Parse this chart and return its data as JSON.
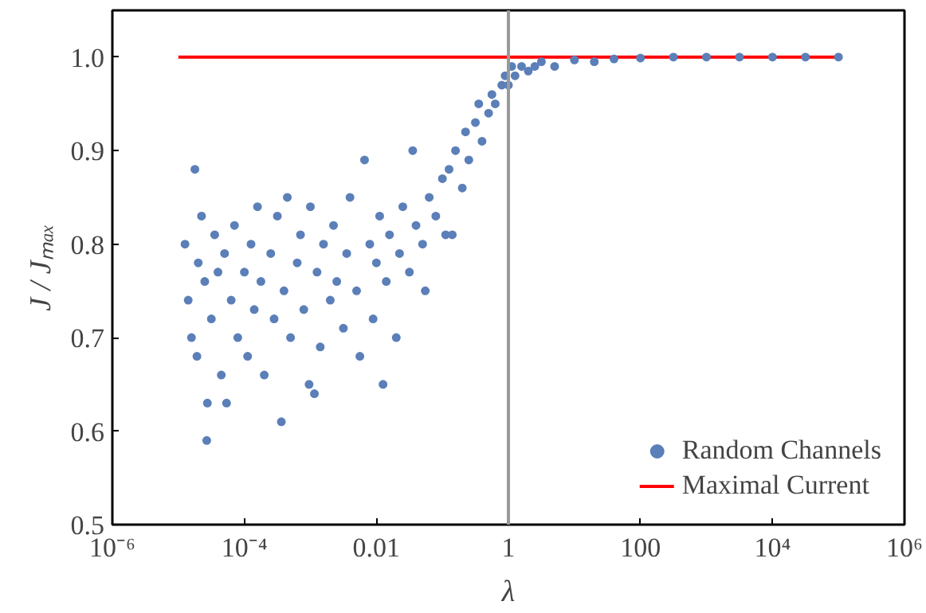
{
  "chart_data": {
    "type": "scatter",
    "xlabel": "λ",
    "ylabel": "J / Jₘₐₓ",
    "log": "x",
    "grid": false,
    "legend": "bottom right",
    "xlim": [
      1e-06,
      1000000
    ],
    "xticks": [
      {
        "value": 1e-06,
        "label": "10⁻⁶"
      },
      {
        "value": 0.0001,
        "label": "10⁻⁴"
      },
      0.01,
      1,
      100,
      {
        "value": 10000,
        "label": "10⁴"
      },
      {
        "value": 1000000,
        "label": "10⁶"
      }
    ],
    "ylim": [
      0.5,
      1.05
    ],
    "yticks": [
      0.5,
      0.6,
      0.7,
      0.8,
      0.9,
      {
        "value": 1.0,
        "label": "1.0"
      }
    ],
    "ref_lines": [
      {
        "axis": "x",
        "value": 1,
        "label": null,
        "color": "#999999",
        "line_style": "solid"
      }
    ],
    "series": [
      {
        "name": "Random Channels",
        "marker": "circle",
        "color": "#5b7fb8",
        "x": [
          1.26e-05,
          1.41e-05,
          1.58e-05,
          1.78e-05,
          2e-05,
          1.91e-05,
          2.24e-05,
          2.51e-05,
          2.69e-05,
          2.75e-05,
          3.16e-05,
          3.55e-05,
          3.98e-05,
          4.47e-05,
          5.01e-05,
          5.37e-05,
          6.31e-05,
          7.08e-05,
          7.94e-05,
          0.0001,
          0.000112,
          0.000126,
          0.000141,
          0.000158,
          0.000178,
          0.0002,
          0.000251,
          0.000282,
          0.000316,
          0.000363,
          0.000398,
          0.000447,
          0.000501,
          0.000631,
          0.000708,
          0.000794,
          0.000955,
          0.001,
          0.00115,
          0.00126,
          0.00141,
          0.00158,
          0.002,
          0.00224,
          0.00251,
          0.00316,
          0.00355,
          0.00398,
          0.00501,
          0.00562,
          0.00661,
          0.00794,
          0.00891,
          0.01,
          0.0112,
          0.0126,
          0.0141,
          0.0158,
          0.02,
          0.0224,
          0.0251,
          0.0316,
          0.0355,
          0.0398,
          0.0501,
          0.055,
          0.0631,
          0.0794,
          0.1,
          0.112,
          0.126,
          0.141,
          0.158,
          0.2,
          0.224,
          0.251,
          0.316,
          0.355,
          0.398,
          0.501,
          0.562,
          0.631,
          0.794,
          0.891,
          1,
          1.12,
          1.26,
          1.58,
          2.0,
          2.51,
          3.16,
          5.01,
          10,
          20,
          39.8,
          100,
          316,
          1000,
          3162,
          10000,
          31623,
          100000
        ],
        "values": [
          0.8,
          0.74,
          0.7,
          0.88,
          0.78,
          0.68,
          0.83,
          0.76,
          0.59,
          0.63,
          0.72,
          0.81,
          0.77,
          0.66,
          0.79,
          0.63,
          0.74,
          0.82,
          0.7,
          0.77,
          0.68,
          0.8,
          0.73,
          0.84,
          0.76,
          0.66,
          0.79,
          0.72,
          0.83,
          0.61,
          0.75,
          0.85,
          0.7,
          0.78,
          0.81,
          0.73,
          0.65,
          0.84,
          0.64,
          0.77,
          0.69,
          0.8,
          0.74,
          0.82,
          0.76,
          0.71,
          0.79,
          0.85,
          0.75,
          0.68,
          0.89,
          0.8,
          0.72,
          0.78,
          0.83,
          0.65,
          0.76,
          0.81,
          0.7,
          0.79,
          0.84,
          0.77,
          0.9,
          0.82,
          0.8,
          0.75,
          0.85,
          0.83,
          0.87,
          0.81,
          0.88,
          0.81,
          0.9,
          0.86,
          0.92,
          0.89,
          0.93,
          0.95,
          0.91,
          0.94,
          0.96,
          0.95,
          0.97,
          0.98,
          0.97,
          0.99,
          0.98,
          0.99,
          0.985,
          0.99,
          0.995,
          0.99,
          0.997,
          0.995,
          0.998,
          0.999,
          1.0,
          1.0,
          1.0,
          1.0,
          1.0,
          1.0
        ]
      },
      {
        "name": "Maximal Current",
        "type": "line",
        "color": "#ff0000",
        "x": [
          1e-05,
          100000
        ],
        "values": [
          1.0,
          1.0
        ]
      }
    ]
  }
}
